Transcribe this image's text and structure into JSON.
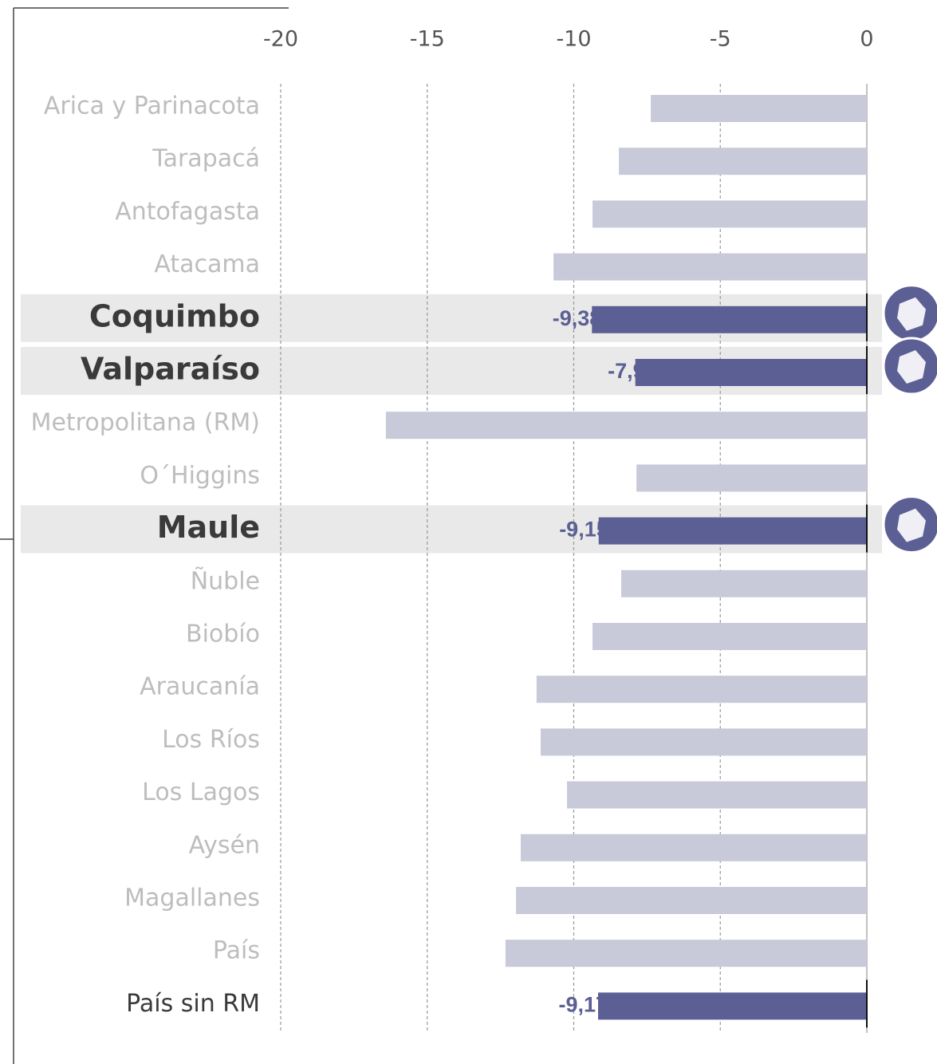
{
  "chart_data": {
    "type": "barh",
    "categories": [
      "Arica y Parinacota",
      "Tarapacá",
      "Antofagasta",
      "Atacama",
      "Coquimbo",
      "Valparaíso",
      "Metropolitana (RM)",
      "O´Higgins",
      "Maule",
      "Ñuble",
      "Biobío",
      "Araucanía",
      "Los Ríos",
      "Los Lagos",
      "Aysén",
      "Magallanes",
      "País",
      "País sin RM"
    ],
    "values": [
      -7.37,
      -8.46,
      -9.36,
      -10.69,
      -9.38,
      -7.9,
      -16.41,
      -7.86,
      -9.15,
      -8.38,
      -9.36,
      -11.27,
      -11.13,
      -10.23,
      -11.81,
      -11.97,
      -12.33,
      -9.17
    ],
    "value_labels": [
      null,
      null,
      null,
      null,
      "-9,38",
      "-7,9",
      null,
      null,
      "-9,15",
      null,
      null,
      null,
      null,
      null,
      null,
      null,
      null,
      "-9,17"
    ],
    "colors": [
      "#c8c9d9",
      "#c8c9d9",
      "#c8c9d9",
      "#c8c9d9",
      "#5b5f94",
      "#5b5f94",
      "#c8c9d9",
      "#c8c9d9",
      "#5b5f94",
      "#c8c9d9",
      "#c8c9d9",
      "#c8c9d9",
      "#c8c9d9",
      "#c8c9d9",
      "#c8c9d9",
      "#c8c9d9",
      "#c8c9d9",
      "#5b5f94"
    ],
    "highlighted": [
      4,
      5,
      8
    ],
    "xlim": [
      -20,
      0
    ],
    "xticks": [
      -20,
      -15,
      -10,
      -5,
      0
    ],
    "grid": true
  }
}
